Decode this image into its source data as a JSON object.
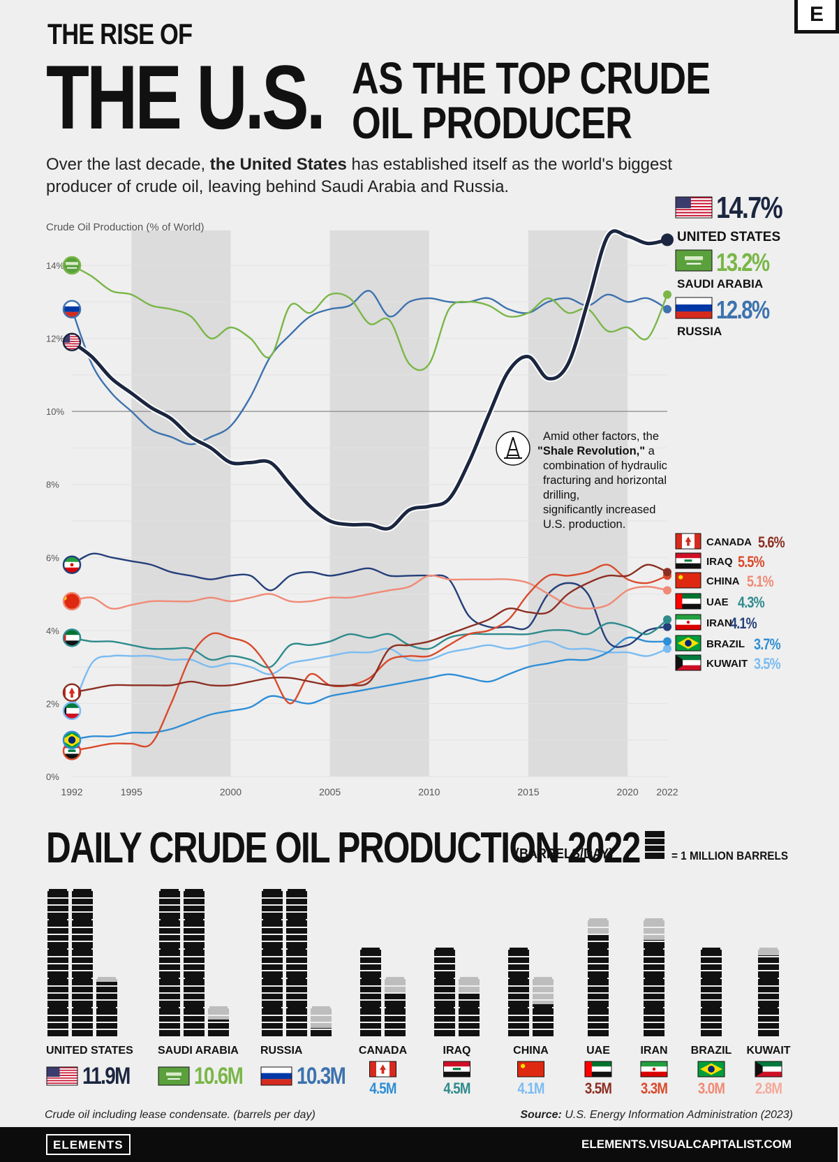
{
  "header": {
    "line1": "THE RISE OF",
    "line2": "THE U.S.",
    "line3a": "AS THE TOP CRUDE",
    "line3b": "OIL PRODUCER",
    "subtitle_pre": "Over the last decade, ",
    "subtitle_bold": "the United States",
    "subtitle_post": " has established itself as the world's biggest producer of crude oil, leaving behind Saudi Arabia and Russia.",
    "logo": "E"
  },
  "colors": {
    "us": "#1b2640",
    "saudi": "#7ab648",
    "russia": "#3d72ae",
    "canada": "#8c2f22",
    "iraq": "#d94a2c",
    "china": "#f08a76",
    "uae": "#2f8a8c",
    "iran": "#243f7a",
    "brazil": "#2f8ed6",
    "kuwait": "#7bbcf2",
    "band": "#dcdcdc",
    "bg": "#efefef"
  },
  "chart_data": {
    "type": "line",
    "ylabel": "Crude Oil Production (% of World)",
    "ylim": [
      0,
      15
    ],
    "xlim": [
      1992,
      2022
    ],
    "y_ticks": [
      "0%",
      "2%",
      "4%",
      "6%",
      "8%",
      "10%",
      "12%",
      "14%"
    ],
    "x_ticks": [
      "1992",
      "1995",
      "2000",
      "2005",
      "2010",
      "2015",
      "2020",
      "2022"
    ],
    "x": [
      1992,
      1993,
      1994,
      1995,
      1996,
      1997,
      1998,
      1999,
      2000,
      2001,
      2002,
      2003,
      2004,
      2005,
      2006,
      2007,
      2008,
      2009,
      2010,
      2011,
      2012,
      2013,
      2014,
      2015,
      2016,
      2017,
      2018,
      2019,
      2020,
      2021,
      2022
    ],
    "series": [
      {
        "name": "UNITED STATES",
        "key": "us",
        "final": "14.7%",
        "values": [
          11.9,
          11.5,
          10.9,
          10.5,
          10.1,
          9.8,
          9.3,
          9.0,
          8.6,
          8.6,
          8.6,
          8.0,
          7.4,
          7.0,
          6.9,
          6.9,
          6.8,
          7.3,
          7.4,
          7.6,
          8.6,
          9.9,
          11.1,
          11.5,
          10.9,
          11.3,
          13.0,
          14.8,
          14.8,
          14.6,
          14.7
        ]
      },
      {
        "name": "SAUDI ARABIA",
        "key": "saudi",
        "final": "13.2%",
        "values": [
          14.0,
          13.7,
          13.3,
          13.2,
          12.9,
          12.8,
          12.6,
          12.0,
          12.3,
          12.0,
          11.5,
          12.9,
          12.7,
          13.2,
          13.1,
          12.4,
          12.5,
          11.3,
          11.3,
          12.8,
          13.0,
          12.9,
          12.6,
          12.7,
          13.1,
          12.7,
          12.8,
          12.2,
          12.3,
          12.0,
          13.2
        ]
      },
      {
        "name": "RUSSIA",
        "key": "russia",
        "final": "12.8%",
        "values": [
          12.8,
          11.3,
          10.5,
          10.0,
          9.5,
          9.3,
          9.1,
          9.3,
          9.6,
          10.4,
          11.5,
          12.1,
          12.6,
          12.8,
          12.9,
          13.3,
          12.6,
          13.0,
          13.1,
          13.0,
          13.0,
          13.1,
          12.8,
          12.7,
          13.0,
          13.1,
          12.9,
          13.2,
          13.0,
          13.1,
          12.8
        ]
      },
      {
        "name": "CANADA",
        "key": "canada",
        "final": "5.6%",
        "values": [
          2.3,
          2.4,
          2.5,
          2.5,
          2.5,
          2.5,
          2.6,
          2.5,
          2.5,
          2.6,
          2.7,
          2.7,
          2.6,
          2.5,
          2.5,
          2.6,
          3.5,
          3.6,
          3.7,
          3.9,
          4.1,
          4.3,
          4.6,
          4.5,
          4.5,
          5.0,
          5.3,
          5.5,
          5.5,
          5.8,
          5.6
        ]
      },
      {
        "name": "IRAQ",
        "key": "iraq",
        "final": "5.5%",
        "values": [
          0.7,
          0.8,
          0.9,
          0.9,
          0.9,
          2.0,
          3.3,
          3.9,
          3.8,
          3.6,
          2.9,
          2.0,
          2.8,
          2.5,
          2.5,
          2.7,
          3.2,
          3.3,
          3.3,
          3.6,
          3.9,
          4.0,
          4.3,
          5.0,
          5.5,
          5.5,
          5.6,
          5.8,
          5.4,
          5.3,
          5.5
        ]
      },
      {
        "name": "CHINA",
        "key": "china",
        "final": "5.1%",
        "values": [
          4.8,
          4.9,
          4.6,
          4.7,
          4.8,
          4.8,
          4.8,
          4.9,
          4.8,
          4.9,
          5.0,
          4.8,
          4.8,
          4.9,
          4.9,
          5.0,
          5.1,
          5.2,
          5.5,
          5.4,
          5.4,
          5.4,
          5.4,
          5.3,
          5.0,
          4.7,
          4.6,
          4.7,
          5.1,
          5.2,
          5.1
        ]
      },
      {
        "name": "UAE",
        "key": "uae",
        "final": "4.3%",
        "values": [
          3.8,
          3.7,
          3.7,
          3.6,
          3.5,
          3.5,
          3.5,
          3.2,
          3.3,
          3.2,
          3.0,
          3.6,
          3.6,
          3.7,
          3.9,
          3.8,
          3.9,
          3.6,
          3.5,
          3.8,
          3.9,
          3.9,
          3.9,
          3.9,
          4.0,
          4.0,
          3.9,
          4.2,
          4.1,
          3.9,
          4.3
        ]
      },
      {
        "name": "IRAN",
        "key": "iran",
        "final": "4.1%",
        "values": [
          5.8,
          6.1,
          6.0,
          5.9,
          5.8,
          5.6,
          5.5,
          5.4,
          5.5,
          5.5,
          5.1,
          5.5,
          5.6,
          5.5,
          5.6,
          5.7,
          5.5,
          5.5,
          5.5,
          5.4,
          4.4,
          4.1,
          4.1,
          4.1,
          5.0,
          5.3,
          5.0,
          3.7,
          3.6,
          4.0,
          4.1
        ]
      },
      {
        "name": "BRAZIL",
        "key": "brazil",
        "final": "3.7%",
        "values": [
          1.0,
          1.1,
          1.1,
          1.2,
          1.2,
          1.3,
          1.5,
          1.7,
          1.8,
          1.9,
          2.2,
          2.1,
          2.0,
          2.2,
          2.3,
          2.4,
          2.5,
          2.6,
          2.7,
          2.8,
          2.7,
          2.6,
          2.8,
          3.0,
          3.1,
          3.2,
          3.2,
          3.4,
          3.8,
          3.7,
          3.7
        ]
      },
      {
        "name": "KUWAIT",
        "key": "kuwait",
        "final": "3.5%",
        "values": [
          1.8,
          3.1,
          3.3,
          3.3,
          3.3,
          3.2,
          3.2,
          3.0,
          3.1,
          3.0,
          2.8,
          3.1,
          3.2,
          3.3,
          3.4,
          3.4,
          3.5,
          3.2,
          3.2,
          3.4,
          3.5,
          3.6,
          3.5,
          3.6,
          3.7,
          3.5,
          3.5,
          3.4,
          3.4,
          3.3,
          3.5
        ]
      }
    ],
    "annotation_bold": "\"Shale Revolution,\"",
    "annotation_pre": "Amid other factors, the",
    "annotation_post": "a combination of hydraulic fracturing and horizontal drilling, significantly increased U.S. production."
  },
  "bars": {
    "title": "DAILY CRUDE OIL PRODUCTION 2022",
    "unit": "(BARRELS/DAY)",
    "legend": "= 1 MILLION BARRELS",
    "countries": [
      {
        "name": "UNITED STATES",
        "key": "us",
        "value": 11.9,
        "label": "11.9M"
      },
      {
        "name": "SAUDI ARABIA",
        "key": "saudi",
        "value": 10.6,
        "label": "10.6M"
      },
      {
        "name": "RUSSIA",
        "key": "russia",
        "value": 10.3,
        "label": "10.3M"
      },
      {
        "name": "CANADA",
        "key": "canada",
        "value": 4.5,
        "label": "4.5M"
      },
      {
        "name": "IRAQ",
        "key": "iraq",
        "value": 4.5,
        "label": "4.5M"
      },
      {
        "name": "CHINA",
        "key": "china",
        "value": 4.1,
        "label": "4.1M"
      },
      {
        "name": "UAE",
        "key": "uae",
        "value": 3.5,
        "label": "3.5M"
      },
      {
        "name": "IRAN",
        "key": "iran",
        "value": 3.3,
        "label": "3.3M"
      },
      {
        "name": "BRAZIL",
        "key": "brazil",
        "value": 3.0,
        "label": "3.0M"
      },
      {
        "name": "KUWAIT",
        "key": "kuwait",
        "value": 2.8,
        "label": "2.8M"
      }
    ]
  },
  "footer": {
    "note": "Crude oil including lease condensate. (barrels per day)",
    "source_label": "Source:",
    "source_text": " U.S. Energy Information Administration (2023)",
    "brand": "ELEMENTS",
    "url": "ELEMENTS.VISUALCAPITALIST.COM"
  }
}
